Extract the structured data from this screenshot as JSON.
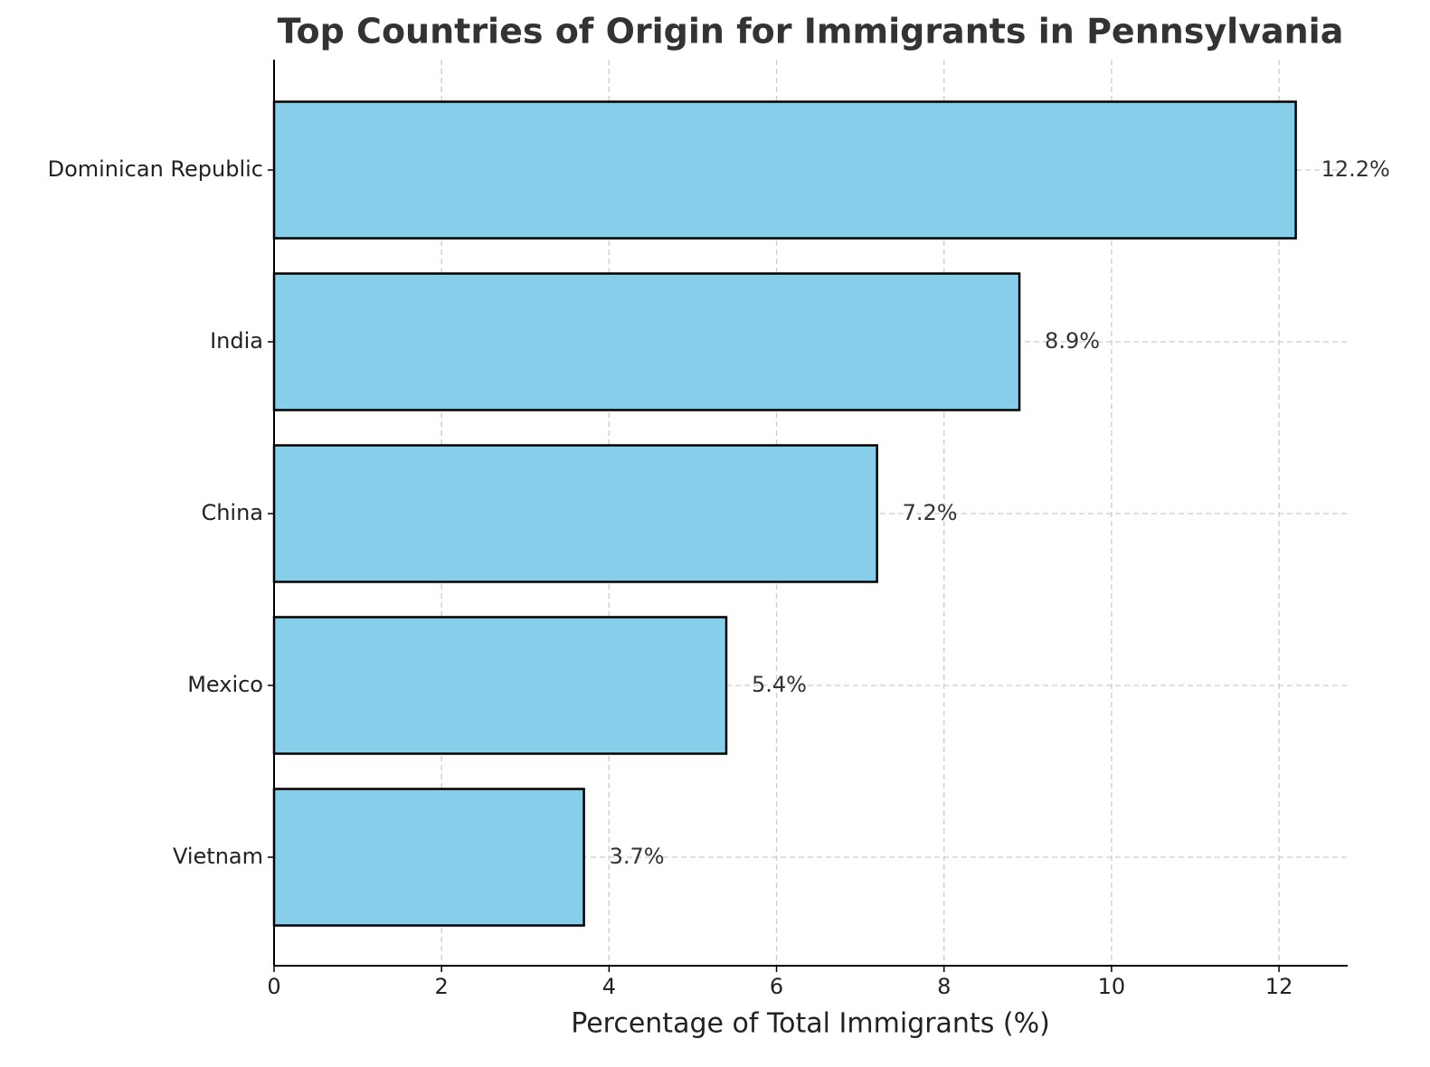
{
  "chart_data": {
    "type": "barh",
    "title": "Top Countries of Origin for Immigrants in Pennsylvania",
    "xlabel": "Percentage of Total Immigrants (%)",
    "categories": [
      "Dominican Republic",
      "India",
      "China",
      "Mexico",
      "Vietnam"
    ],
    "values": [
      12.2,
      8.9,
      7.2,
      5.4,
      3.7
    ],
    "value_labels": [
      "12.2%",
      "8.9%",
      "7.2%",
      "5.4%",
      "3.7%"
    ],
    "color": "#87ceeb",
    "xlim": [
      0,
      12.82
    ],
    "xticks": [
      0,
      2,
      4,
      6,
      8,
      10,
      12
    ],
    "grid": true
  }
}
